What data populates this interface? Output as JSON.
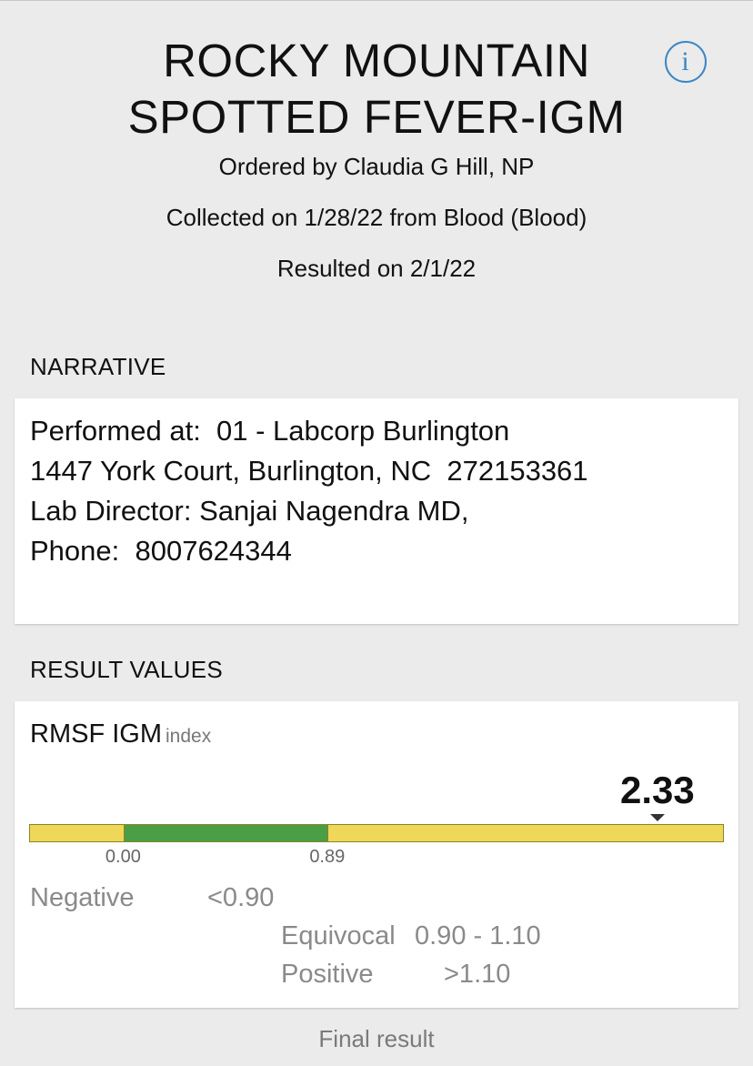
{
  "header": {
    "title_line1": "ROCKY MOUNTAIN",
    "title_line2": "SPOTTED FEVER-IGM",
    "ordered_by": "Ordered by Claudia G Hill, NP",
    "collected": "Collected on 1/28/22 from Blood (Blood)",
    "resulted": "Resulted on 2/1/22",
    "info_icon": "info-circle-icon",
    "info_glyph": "i",
    "accent_color": "#3a86c6"
  },
  "narrative": {
    "section_label": "NARRATIVE",
    "lines": [
      "Performed at:  01 - Labcorp Burlington",
      "1447 York Court, Burlington, NC  272153361",
      "Lab Director: Sanjai Nagendra MD,",
      "Phone:  8007624344"
    ]
  },
  "results": {
    "section_label": "RESULT VALUES",
    "component": {
      "name": "RMSF IGM",
      "unit": "index",
      "value": "2.33",
      "value_numeric": 2.33,
      "range_low": "0.00",
      "range_high": "0.89",
      "range_low_numeric": 0.0,
      "range_high_numeric": 0.89,
      "scale_min": -0.41,
      "scale_max": 2.62,
      "colors": {
        "in_range": "#4a9e46",
        "out_of_range": "#efd75a"
      }
    },
    "reference": {
      "negative_label": "Negative",
      "negative_value": "<0.90",
      "equivocal_label": "Equivocal",
      "equivocal_value": "0.90 - 1.10",
      "positive_label": "Positive",
      "positive_value": ">1.10"
    },
    "status": "Final result"
  }
}
